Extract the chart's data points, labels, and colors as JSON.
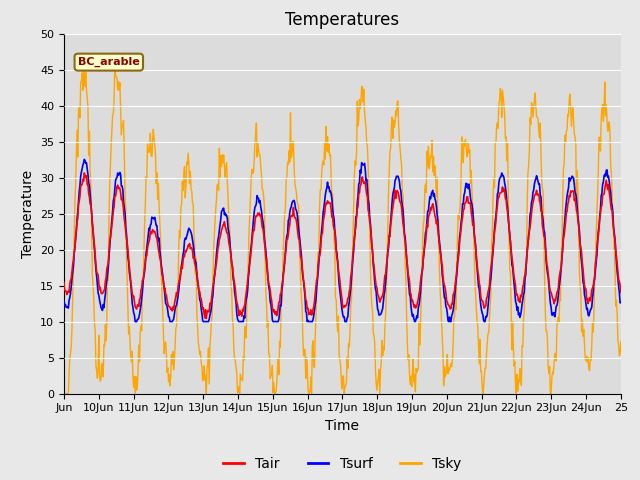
{
  "title": "Temperatures",
  "xlabel": "Time",
  "ylabel": "Temperature",
  "ylim": [
    0,
    50
  ],
  "xtick_labels": [
    "Jun",
    "10Jun",
    "11Jun",
    "12Jun",
    "13Jun",
    "14Jun",
    "15Jun",
    "16Jun",
    "17Jun",
    "18Jun",
    "19Jun",
    "20Jun",
    "21Jun",
    "22Jun",
    "23Jun",
    "24Jun",
    "25"
  ],
  "xtick_positions": [
    9,
    10,
    11,
    12,
    13,
    14,
    15,
    16,
    17,
    18,
    19,
    20,
    21,
    22,
    23,
    24,
    25
  ],
  "legend_labels": [
    "Tair",
    "Tsurf",
    "Tsky"
  ],
  "box_label": "BC_arable",
  "box_facecolor": "#ffffcc",
  "box_edgecolor": "#8B6914",
  "box_text_color": "#8B0000",
  "tair_color": "red",
  "tsurf_color": "blue",
  "tsky_color": "orange",
  "fig_facecolor": "#e8e8e8",
  "ax_facecolor": "#dcdcdc",
  "title_fontsize": 12,
  "axis_fontsize": 10,
  "tick_fontsize": 8,
  "seed": 7
}
